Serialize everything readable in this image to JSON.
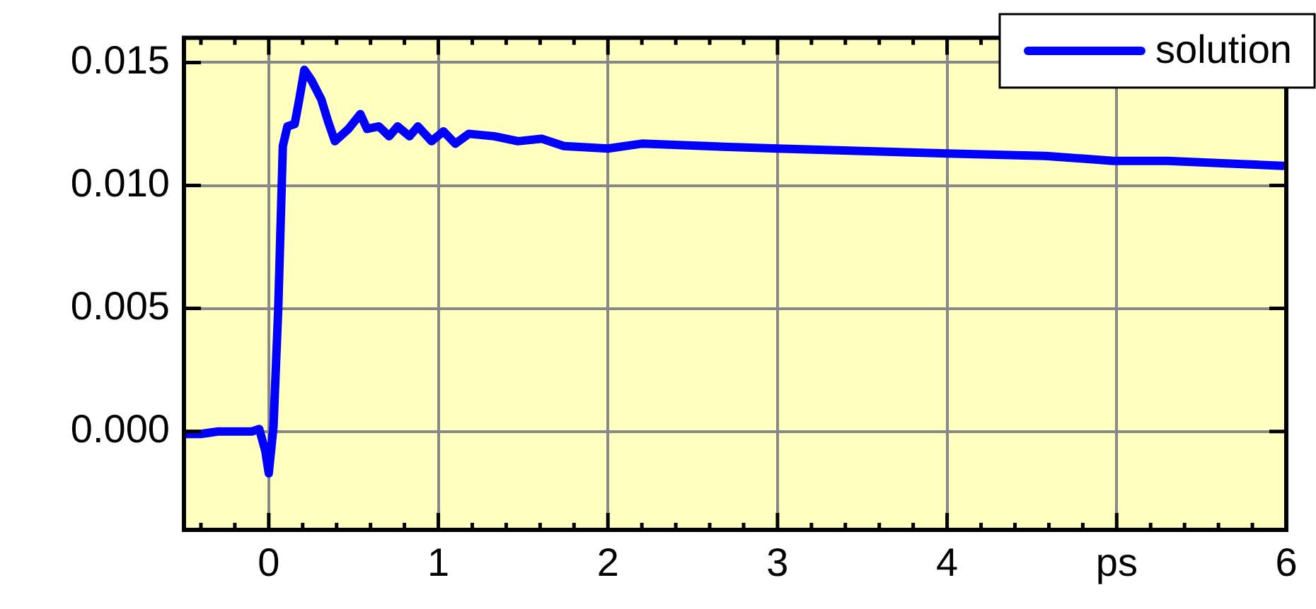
{
  "chart_data": {
    "type": "line",
    "xlabel": null,
    "x": [
      -0.5,
      -0.4,
      -0.3,
      -0.2,
      -0.1,
      -0.056,
      -0.02,
      0.0,
      0.028,
      0.056,
      0.083,
      0.11,
      0.153,
      0.18,
      0.21,
      0.25,
      0.31,
      0.35,
      0.39,
      0.47,
      0.54,
      0.58,
      0.65,
      0.71,
      0.76,
      0.83,
      0.88,
      0.96,
      1.03,
      1.1,
      1.18,
      1.33,
      1.47,
      1.61,
      1.74,
      2.0,
      2.2,
      2.58,
      3.0,
      3.5,
      4.0,
      4.58,
      4.98,
      5.3,
      5.64,
      5.98
    ],
    "series": [
      {
        "name": "solution",
        "color": "#0000ff",
        "values": [
          -0.0001,
          -0.0001,
          0.0,
          0.0,
          0.0,
          0.0001,
          -0.0008,
          -0.0017,
          0.0002,
          0.005,
          0.0116,
          0.0124,
          0.0125,
          0.0135,
          0.0147,
          0.0143,
          0.0135,
          0.0126,
          0.0118,
          0.0123,
          0.0129,
          0.0123,
          0.0124,
          0.012,
          0.0124,
          0.012,
          0.0124,
          0.0118,
          0.0122,
          0.0117,
          0.0121,
          0.012,
          0.0118,
          0.0119,
          0.0116,
          0.0115,
          0.0117,
          0.0116,
          0.0115,
          0.0114,
          0.0113,
          0.0112,
          0.011,
          0.011,
          0.0109,
          0.0108
        ]
      }
    ],
    "xlim": [
      -0.5,
      6
    ],
    "xticks": [
      {
        "value": -0.4,
        "label": null
      },
      {
        "value": -0.2,
        "label": null
      },
      0,
      {
        "value": 0.2,
        "label": null
      },
      {
        "value": 0.4,
        "label": null
      },
      {
        "value": 0.6,
        "label": null
      },
      {
        "value": 0.8,
        "label": null
      },
      1,
      {
        "value": 1.2,
        "label": null
      },
      {
        "value": 1.4,
        "label": null
      },
      {
        "value": 1.6,
        "label": null
      },
      {
        "value": 1.8,
        "label": null
      },
      2,
      {
        "value": 2.2,
        "label": null
      },
      {
        "value": 2.4,
        "label": null
      },
      {
        "value": 2.6,
        "label": null
      },
      {
        "value": 2.8,
        "label": null
      },
      3,
      {
        "value": 3.2,
        "label": null
      },
      {
        "value": 3.4,
        "label": null
      },
      {
        "value": 3.6,
        "label": null
      },
      {
        "value": 3.8,
        "label": null
      },
      4,
      {
        "value": 4.2,
        "label": null
      },
      {
        "value": 4.4,
        "label": null
      },
      {
        "value": 4.6,
        "label": null
      },
      {
        "value": 4.8,
        "label": null
      },
      {
        "value": 5,
        "label": "ps"
      },
      {
        "value": 5.2,
        "label": null
      },
      {
        "value": 5.4,
        "label": null
      },
      {
        "value": 5.6,
        "label": null
      },
      {
        "value": 5.8,
        "label": null
      },
      6
    ],
    "ylim": [
      -0.004,
      0.016
    ],
    "yticks": [
      {
        "value": 0,
        "label": "0.000"
      },
      {
        "value": 0.005,
        "label": "0.005"
      },
      {
        "value": 0.01,
        "label": "0.010"
      },
      {
        "value": 0.015,
        "label": "0.015"
      }
    ],
    "grid": true,
    "legend": "top right",
    "marker": "none",
    "line_style": "solid"
  }
}
